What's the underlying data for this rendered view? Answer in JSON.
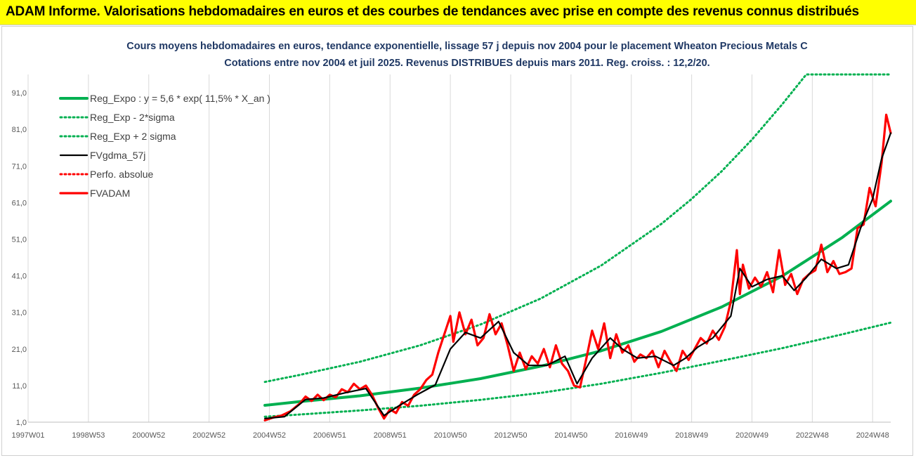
{
  "banner": {
    "title": "ADAM Informe. Valorisations hebdomadaires en euros et des courbes de tendances avec prise en compte des revenus connus distribués"
  },
  "colors": {
    "banner_bg": "#ffff00",
    "trend": "#00b050",
    "fvgdma": "#000000",
    "fvadam": "#ff0000",
    "title": "#1f3864",
    "grid": "#d9d9d9"
  },
  "chart_data": {
    "type": "line",
    "title": "Cours moyens hebdomadaires en euros, tendance exponentielle, lissage 57 j depuis nov 2004 pour le placement Wheaton Precious Metals C",
    "subtitle": "Cotations entre nov 2004 et juil 2025. Revenus DISTRIBUES depuis mars 2011. Reg. croiss. : 12,2/20.",
    "xlabel": "",
    "ylabel": "",
    "x_range": [
      1997.0,
      2025.6
    ],
    "ylim": [
      1,
      96
    ],
    "y_ticks": [
      "1,0",
      "11,0",
      "21,0",
      "31,0",
      "41,0",
      "51,0",
      "61,0",
      "71,0",
      "81,0",
      "91,0"
    ],
    "y_tick_values": [
      1,
      11,
      21,
      31,
      41,
      51,
      61,
      71,
      81,
      91
    ],
    "x_ticks": [
      "1997W01",
      "1998W53",
      "2000W52",
      "2002W52",
      "2004W52",
      "2006W51",
      "2008W51",
      "2010W50",
      "2012W50",
      "2014W50",
      "2016W49",
      "2018W49",
      "2020W49",
      "2022W48",
      "2024W48"
    ],
    "x_tick_years": [
      1997.0,
      1999.0,
      2001.0,
      2003.0,
      2005.0,
      2007.0,
      2009.0,
      2011.0,
      2013.0,
      2015.0,
      2017.0,
      2019.0,
      2021.0,
      2023.0,
      2025.0
    ],
    "grid": "vertical",
    "legend_position": "top-left",
    "series": [
      {
        "name": "Reg_Expo : y = 5,6 * exp( 11,5% *  X_an )",
        "color": "#00b050",
        "style": "solid",
        "x": [
          2004.85,
          2006,
          2008,
          2010,
          2012,
          2014,
          2016,
          2018,
          2020,
          2022,
          2024,
          2025.6
        ],
        "y": [
          5.6,
          6.6,
          8.2,
          10.3,
          12.9,
          16.3,
          20.5,
          25.8,
          32.5,
          40.9,
          51.5,
          61.4
        ]
      },
      {
        "name": "Reg_Exp - 2*sigma",
        "color": "#00b050",
        "style": "dotted",
        "x": [
          2004.85,
          2006,
          2008,
          2010,
          2012,
          2014,
          2016,
          2018,
          2020,
          2022,
          2024,
          2025.6
        ],
        "y": [
          2.5,
          3.1,
          4.2,
          5.5,
          7.1,
          9.0,
          11.5,
          14.5,
          17.8,
          21.2,
          25.0,
          28.2
        ]
      },
      {
        "name": "Reg_Exp + 2 sigma",
        "color": "#00b050",
        "style": "dotted",
        "x": [
          2004.85,
          2006,
          2008,
          2010,
          2012,
          2014,
          2016,
          2018,
          2019,
          2020,
          2021,
          2022,
          2022.8,
          2023,
          2024,
          2025.6
        ],
        "y": [
          12.0,
          13.9,
          17.5,
          22.0,
          27.7,
          34.8,
          43.8,
          55.2,
          62.0,
          69.6,
          78.2,
          87.8,
          96.0,
          96.0,
          96.0,
          96.0
        ]
      },
      {
        "name": "FVgdma_57j",
        "color": "#000000",
        "style": "solid",
        "x": [
          2004.85,
          2005.5,
          2006.2,
          2006.8,
          2007.5,
          2008.2,
          2008.8,
          2009.3,
          2009.9,
          2010.5,
          2011.0,
          2011.5,
          2012.0,
          2012.6,
          2013.1,
          2013.6,
          2014.2,
          2014.8,
          2015.2,
          2015.7,
          2016.3,
          2016.7,
          2017.2,
          2017.8,
          2018.4,
          2018.8,
          2019.2,
          2019.7,
          2020.3,
          2020.6,
          2021.0,
          2021.5,
          2022.0,
          2022.4,
          2022.8,
          2023.3,
          2023.8,
          2024.2,
          2024.6,
          2025.0,
          2025.3,
          2025.6
        ],
        "y": [
          2.0,
          2.5,
          7.2,
          7.6,
          9.0,
          10.2,
          2.8,
          5.5,
          8.5,
          11.2,
          21.0,
          25.5,
          24.0,
          28.5,
          20.0,
          16.5,
          16.5,
          19.0,
          11.5,
          18.5,
          24.0,
          21.0,
          18.5,
          19.0,
          16.5,
          18.5,
          21.5,
          24.0,
          30.0,
          43.0,
          38.0,
          40.0,
          41.0,
          37.0,
          40.5,
          45.5,
          43.0,
          44.0,
          54.0,
          62.0,
          73.0,
          80.0
        ]
      },
      {
        "name": "Perfo. absolue",
        "color": "#ff0000",
        "style": "dotted",
        "x": [],
        "y": []
      },
      {
        "name": "FVADAM",
        "color": "#ff0000",
        "style": "solid",
        "x": [
          2004.85,
          2005.1,
          2005.4,
          2005.7,
          2006.0,
          2006.2,
          2006.4,
          2006.6,
          2006.8,
          2007.0,
          2007.2,
          2007.4,
          2007.6,
          2007.8,
          2008.0,
          2008.2,
          2008.4,
          2008.6,
          2008.8,
          2009.0,
          2009.2,
          2009.4,
          2009.6,
          2009.8,
          2010.0,
          2010.2,
          2010.4,
          2010.6,
          2010.8,
          2011.0,
          2011.1,
          2011.3,
          2011.5,
          2011.7,
          2011.9,
          2012.1,
          2012.3,
          2012.5,
          2012.7,
          2012.9,
          2013.1,
          2013.3,
          2013.5,
          2013.7,
          2013.9,
          2014.1,
          2014.3,
          2014.5,
          2014.7,
          2014.9,
          2015.1,
          2015.3,
          2015.5,
          2015.7,
          2015.9,
          2016.1,
          2016.3,
          2016.5,
          2016.7,
          2016.9,
          2017.1,
          2017.3,
          2017.5,
          2017.7,
          2017.9,
          2018.1,
          2018.3,
          2018.5,
          2018.7,
          2018.9,
          2019.1,
          2019.3,
          2019.5,
          2019.7,
          2019.9,
          2020.1,
          2020.3,
          2020.5,
          2020.6,
          2020.7,
          2020.9,
          2021.1,
          2021.3,
          2021.5,
          2021.7,
          2021.9,
          2022.1,
          2022.3,
          2022.5,
          2022.7,
          2022.9,
          2023.1,
          2023.3,
          2023.5,
          2023.7,
          2023.9,
          2024.1,
          2024.3,
          2024.5,
          2024.7,
          2024.9,
          2025.1,
          2025.3,
          2025.45,
          2025.6
        ],
        "y": [
          1.5,
          2.2,
          2.8,
          4.0,
          6.0,
          8.0,
          6.8,
          8.5,
          7.0,
          8.5,
          7.8,
          10.0,
          9.2,
          11.5,
          10.0,
          11.0,
          8.5,
          5.0,
          2.0,
          4.5,
          3.5,
          6.5,
          5.5,
          8.5,
          10.0,
          12.5,
          14.0,
          20.0,
          25.0,
          30.0,
          23.0,
          31.0,
          25.0,
          29.0,
          22.0,
          24.0,
          30.5,
          25.0,
          28.0,
          22.0,
          15.0,
          20.0,
          15.5,
          19.0,
          17.0,
          21.0,
          16.0,
          22.0,
          17.0,
          15.0,
          11.0,
          10.5,
          18.0,
          26.0,
          21.0,
          28.0,
          18.5,
          25.0,
          20.0,
          22.0,
          17.5,
          19.5,
          18.5,
          20.5,
          16.0,
          20.5,
          17.5,
          15.0,
          20.5,
          18.0,
          21.0,
          24.0,
          22.5,
          26.0,
          23.5,
          27.0,
          34.0,
          48.0,
          36.0,
          44.0,
          37.5,
          40.5,
          38.0,
          42.0,
          36.5,
          48.0,
          38.5,
          41.5,
          36.0,
          40.0,
          41.5,
          42.5,
          49.5,
          42.0,
          45.0,
          41.5,
          42.0,
          43.0,
          54.0,
          55.0,
          65.0,
          60.0,
          72.0,
          85.0,
          80.0
        ]
      }
    ]
  }
}
